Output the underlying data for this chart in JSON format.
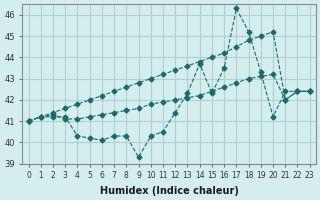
{
  "xlabel": "Humidex (Indice chaleur)",
  "ylabel": "",
  "background_color": "#d4eeee",
  "grid_color": "#b0d0d0",
  "line_color": "#1a6b6b",
  "xlim": [
    -0.5,
    23.5
  ],
  "ylim": [
    39,
    46.5
  ],
  "yticks": [
    39,
    40,
    41,
    42,
    43,
    44,
    45,
    46
  ],
  "xticks": [
    0,
    1,
    2,
    3,
    4,
    5,
    6,
    7,
    8,
    9,
    10,
    11,
    12,
    13,
    14,
    15,
    16,
    17,
    18,
    19,
    20,
    21,
    22,
    23
  ],
  "series": [
    [
      41.0,
      41.2,
      41.2,
      41.2,
      40.3,
      40.2,
      40.1,
      40.3,
      40.3,
      39.3,
      40.3,
      40.5,
      41.4,
      42.3,
      43.7,
      42.3,
      43.5,
      46.3,
      45.2,
      43.3,
      41.2,
      42.4,
      42.4,
      42.4
    ],
    [
      41.0,
      41.2,
      41.3,
      41.1,
      41.1,
      41.2,
      41.3,
      41.4,
      41.5,
      41.6,
      41.8,
      41.9,
      42.0,
      42.1,
      42.2,
      42.4,
      42.6,
      42.8,
      43.0,
      43.1,
      43.2,
      42.0,
      42.4,
      42.4
    ],
    [
      41.0,
      41.2,
      41.4,
      41.6,
      41.8,
      42.0,
      42.2,
      42.4,
      42.6,
      42.8,
      43.0,
      43.2,
      43.4,
      43.6,
      43.8,
      44.0,
      44.2,
      44.5,
      44.8,
      45.0,
      45.2,
      42.0,
      42.4,
      42.4
    ]
  ]
}
